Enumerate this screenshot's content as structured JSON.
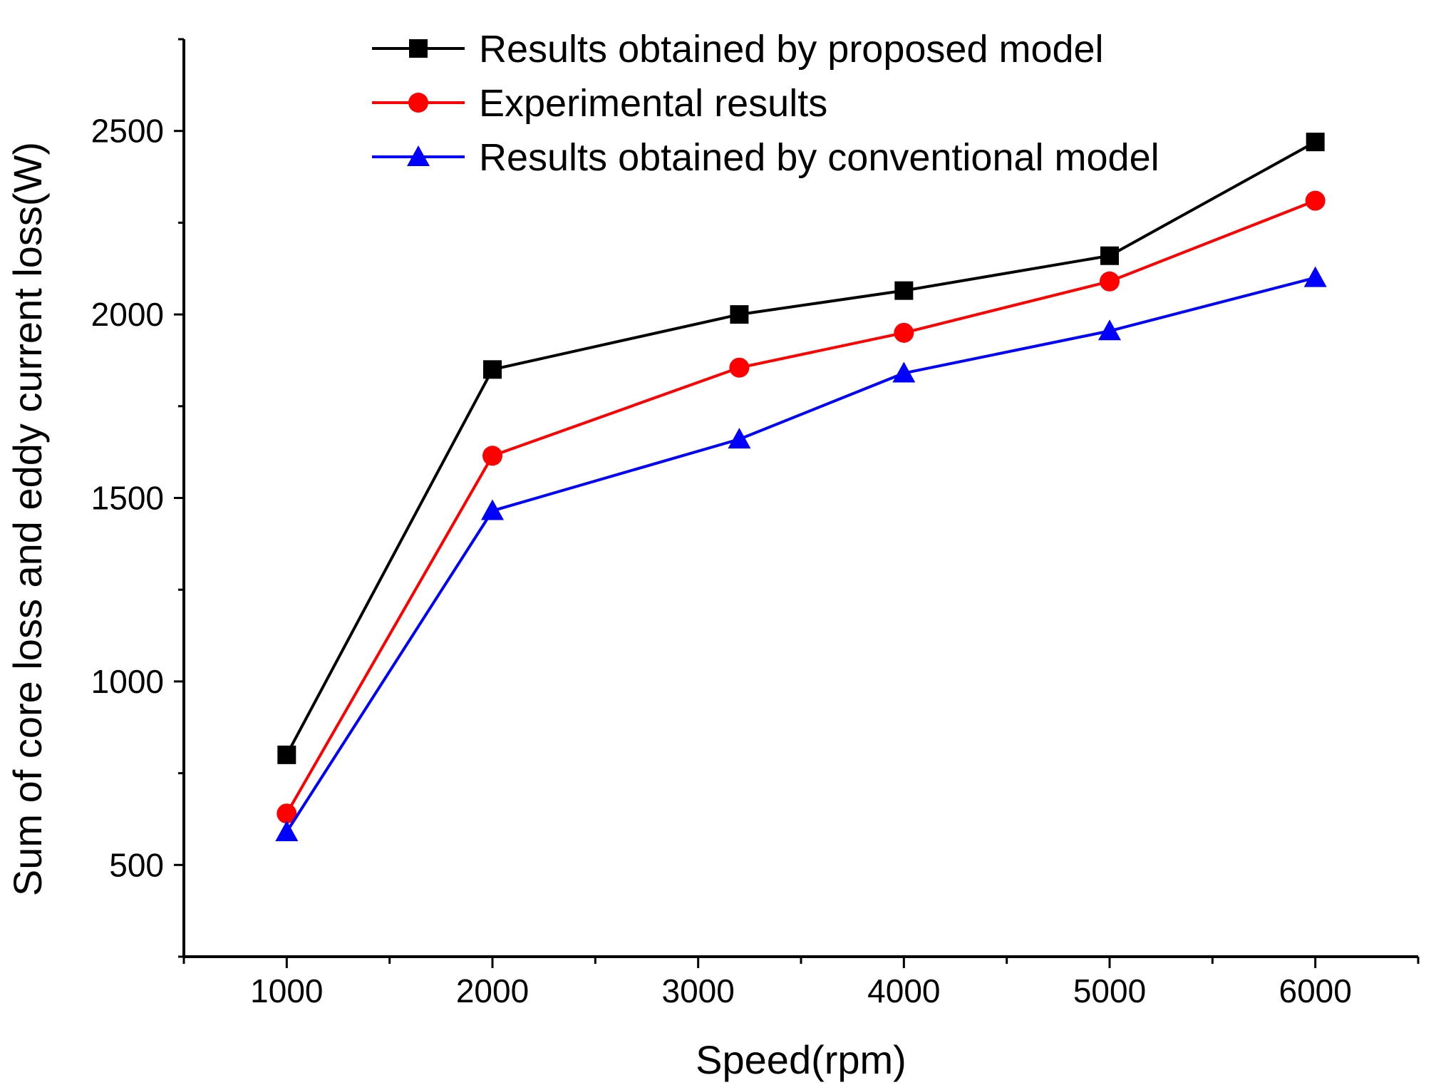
{
  "chart_data": {
    "type": "line",
    "title": "",
    "xlabel": "Speed(rpm)",
    "ylabel": "Sum of core loss and eddy current loss(W)",
    "xlim": [
      500,
      6500
    ],
    "ylim": [
      250,
      2750
    ],
    "x_ticks": [
      1000,
      2000,
      3000,
      4000,
      5000,
      6000
    ],
    "y_ticks": [
      500,
      1000,
      1500,
      2000,
      2500
    ],
    "grid": false,
    "legend_position": "top",
    "series": [
      {
        "name": "Results obtained by proposed model",
        "color": "#000000",
        "marker": "square",
        "x": [
          1000,
          2000,
          3200,
          4000,
          5000,
          6000
        ],
        "values": [
          800,
          1850,
          2000,
          2065,
          2160,
          2470
        ]
      },
      {
        "name": "Experimental results",
        "color": "#ff0000",
        "marker": "circle",
        "x": [
          1000,
          2000,
          3200,
          4000,
          5000,
          6000
        ],
        "values": [
          640,
          1615,
          1855,
          1950,
          2090,
          2310
        ]
      },
      {
        "name": "Results obtained by conventional model",
        "color": "#0000ff",
        "marker": "triangle",
        "x": [
          1000,
          2000,
          3200,
          4000,
          5000,
          6000
        ],
        "values": [
          590,
          1465,
          1660,
          1840,
          1955,
          2100
        ]
      }
    ]
  }
}
